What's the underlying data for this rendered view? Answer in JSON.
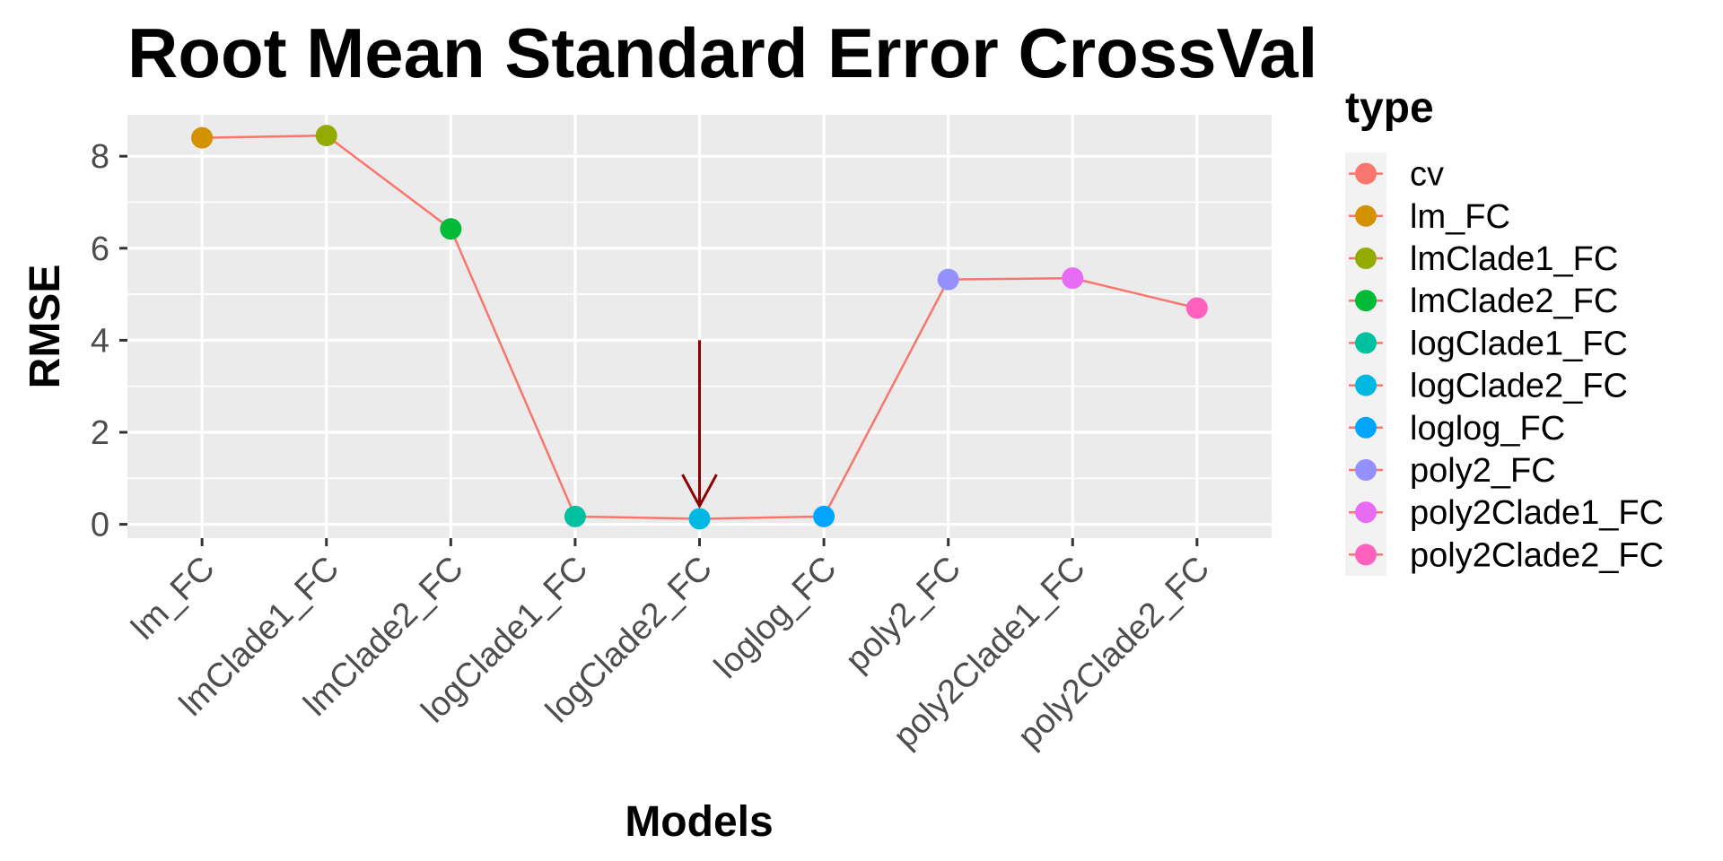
{
  "chart_data": {
    "type": "line",
    "title": "Root Mean Standard Error CrossVal",
    "xlabel": "Models",
    "ylabel": "RMSE",
    "categories": [
      "lm_FC",
      "lmClade1_FC",
      "lmClade2_FC",
      "logClade1_FC",
      "logClade2_FC",
      "loglog_FC",
      "poly2_FC",
      "poly2Clade1_FC",
      "poly2Clade2_FC"
    ],
    "ylim": [
      -0.3,
      8.9
    ],
    "yticks": [
      0,
      2,
      4,
      6,
      8
    ],
    "grid": true,
    "series": [
      {
        "name": "cv",
        "color": "#F8766D",
        "values": [
          8.4,
          8.45,
          6.42,
          0.17,
          0.12,
          0.17,
          5.32,
          5.35,
          4.7
        ]
      }
    ],
    "point_types": [
      "lm_FC",
      "lmClade1_FC",
      "lmClade2_FC",
      "logClade1_FC",
      "logClade2_FC",
      "loglog_FC",
      "poly2_FC",
      "poly2Clade1_FC",
      "poly2Clade2_FC"
    ],
    "legend": {
      "title": "type",
      "position": "right",
      "entries": [
        {
          "label": "cv",
          "color": "#F8766D"
        },
        {
          "label": "lm_FC",
          "color": "#D39200"
        },
        {
          "label": "lmClade1_FC",
          "color": "#93AA00"
        },
        {
          "label": "lmClade2_FC",
          "color": "#00BA38"
        },
        {
          "label": "logClade1_FC",
          "color": "#00C19F"
        },
        {
          "label": "logClade2_FC",
          "color": "#00B9E3"
        },
        {
          "label": "loglog_FC",
          "color": "#00A5FF"
        },
        {
          "label": "poly2_FC",
          "color": "#9590FF"
        },
        {
          "label": "poly2Clade1_FC",
          "color": "#E76BF3"
        },
        {
          "label": "poly2Clade2_FC",
          "color": "#FF62BC"
        }
      ]
    },
    "annotation": {
      "type": "arrow",
      "color": "#8B0000",
      "category": "logClade2_FC",
      "y_from": 4.0,
      "y_to": 0.4
    }
  }
}
